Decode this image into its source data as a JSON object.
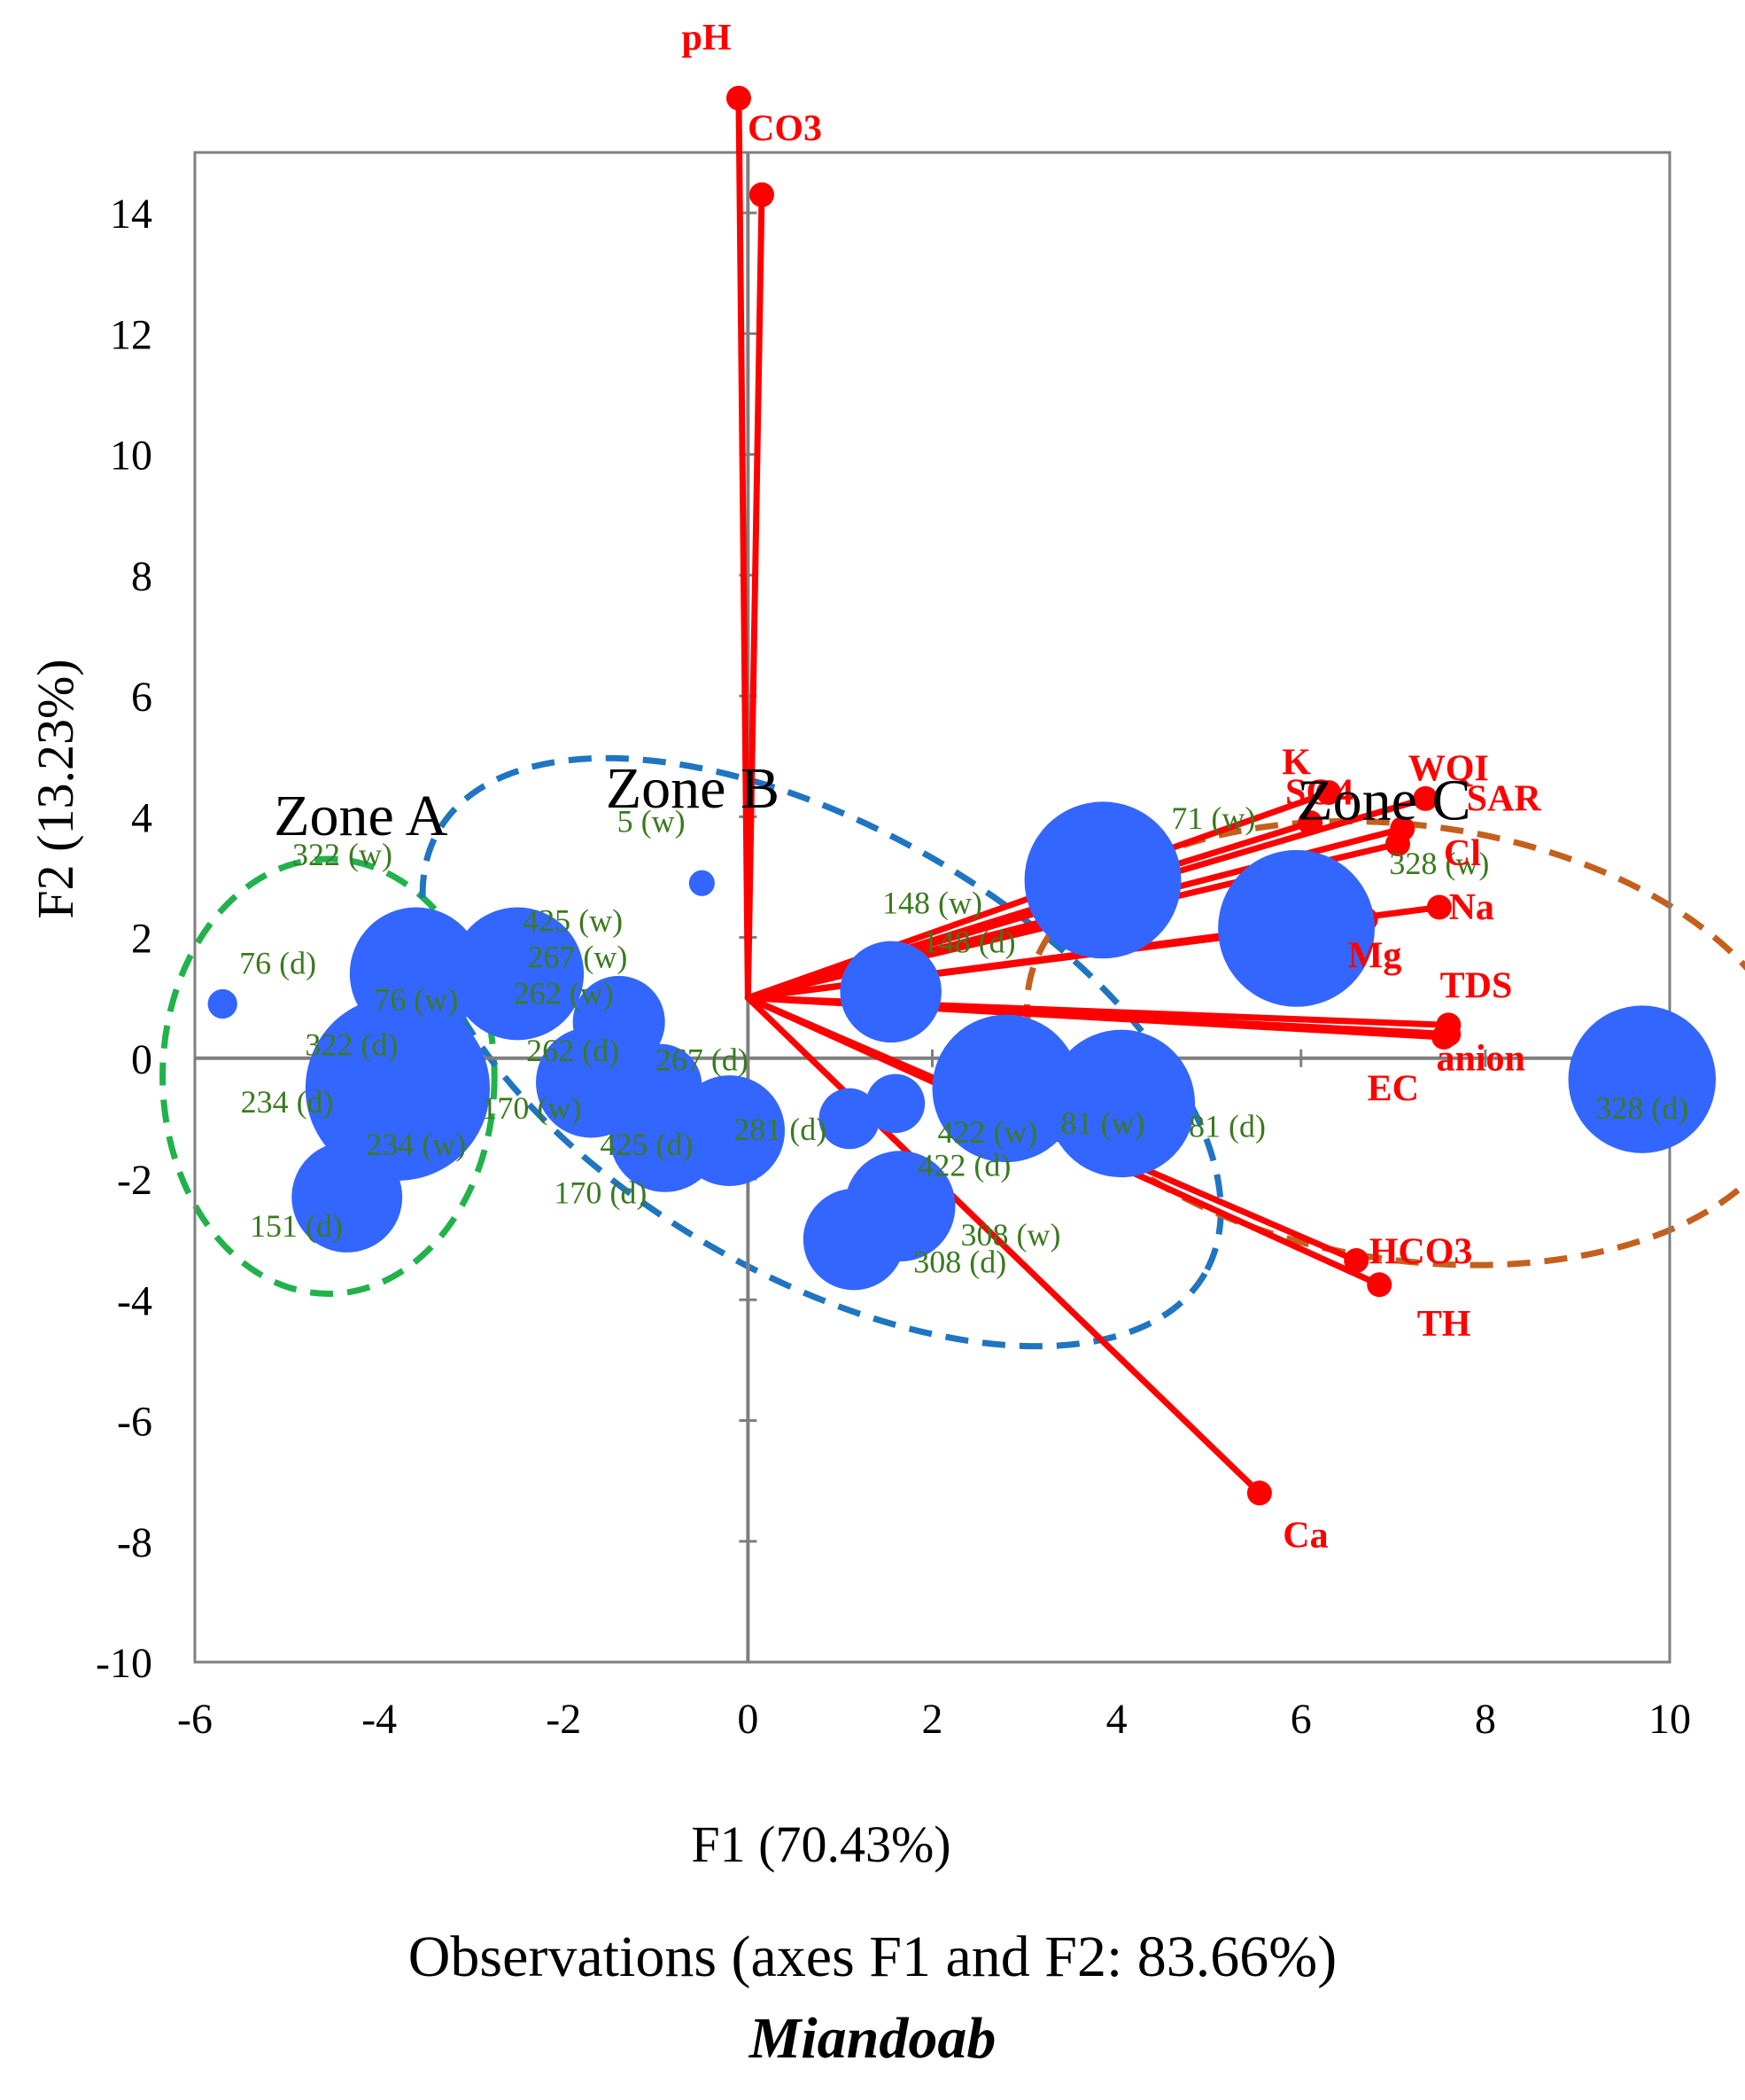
{
  "chart_data": {
    "type": "biplot",
    "title": "Observations (axes F1 and F2: 83.66%)",
    "subtitle": "Miandoab",
    "xlabel": "F1 (70.43%)",
    "ylabel": "F2 (13.23%)",
    "xlim": [
      -6,
      10
    ],
    "ylim": [
      -10,
      15
    ],
    "x_ticks": [
      -6,
      -4,
      -2,
      0,
      2,
      4,
      6,
      8,
      10
    ],
    "y_ticks": [
      -10,
      -8,
      -6,
      -4,
      -2,
      0,
      2,
      4,
      6,
      8,
      10,
      12,
      14
    ],
    "x_tick_labels": [
      "-6",
      "-4",
      "-2",
      "0",
      "2",
      "4",
      "6",
      "8",
      "10"
    ],
    "y_tick_labels": [
      "-10",
      "-8",
      "-6",
      "-4",
      "-2",
      "0",
      "2",
      "4",
      "6",
      "8",
      "10",
      "12",
      "14"
    ],
    "grid": false,
    "vector_origin": [
      0,
      1
    ],
    "variables": [
      {
        "name": "pH",
        "x": -0.1,
        "y": 15.9,
        "lx": -0.45,
        "ly": 16.7
      },
      {
        "name": "CO3",
        "x": 0.15,
        "y": 14.3,
        "lx": 0.4,
        "ly": 15.2
      },
      {
        "name": "K",
        "x": 6.3,
        "y": 4.4,
        "lx": 5.95,
        "ly": 4.7
      },
      {
        "name": "SO4",
        "x": 6.1,
        "y": 3.9,
        "lx": 6.2,
        "ly": 4.2
      },
      {
        "name": "WQI",
        "x": 7.35,
        "y": 4.3,
        "lx": 7.6,
        "ly": 4.6
      },
      {
        "name": "SAR",
        "x": 7.1,
        "y": 3.8,
        "lx": 8.2,
        "ly": 4.1
      },
      {
        "name": "Cl",
        "x": 7.05,
        "y": 3.55,
        "lx": 7.75,
        "ly": 3.2
      },
      {
        "name": "Na",
        "x": 7.5,
        "y": 2.5,
        "lx": 7.85,
        "ly": 2.3
      },
      {
        "name": "Mg",
        "x": 6.7,
        "y": 2.3,
        "lx": 6.8,
        "ly": 1.5
      },
      {
        "name": "TDS",
        "x": 7.6,
        "y": 0.55,
        "lx": 7.9,
        "ly": 1.0
      },
      {
        "name": "anion",
        "x": 7.6,
        "y": 0.4,
        "lx": 7.95,
        "ly": -0.2
      },
      {
        "name": "EC",
        "x": 7.55,
        "y": 0.35,
        "lx": 7.0,
        "ly": -0.7
      },
      {
        "name": "HCO3",
        "x": 6.6,
        "y": -3.35,
        "lx": 7.3,
        "ly": -3.4
      },
      {
        "name": "TH",
        "x": 6.85,
        "y": -3.75,
        "lx": 7.55,
        "ly": -4.6
      },
      {
        "name": "Ca",
        "x": 5.55,
        "y": -7.2,
        "lx": 6.05,
        "ly": -8.1
      }
    ],
    "observations": [
      {
        "label": "76 (d)",
        "x": -5.7,
        "y": 0.9,
        "size": 0.16,
        "lx": -5.1,
        "ly": 1.4
      },
      {
        "label": "322 (w)",
        "x": -4.4,
        "y": 3.2,
        "size": 0,
        "lx": -4.4,
        "ly": 3.2
      },
      {
        "label": "76 (w)",
        "x": -3.6,
        "y": 1.4,
        "size": 0.72,
        "lx": -3.6,
        "ly": 0.8
      },
      {
        "label": "322 (d)",
        "x": -4.3,
        "y": 0.05,
        "size": 0,
        "lx": -4.3,
        "ly": 0.05
      },
      {
        "label": "234 (d)",
        "x": -3.8,
        "y": -0.5,
        "size": 1.0,
        "lx": -5.0,
        "ly": -0.9
      },
      {
        "label": "234 (w)",
        "x": -3.6,
        "y": -1.6,
        "size": 0,
        "lx": -3.6,
        "ly": -1.6
      },
      {
        "label": "151 (d)",
        "x": -4.35,
        "y": -2.3,
        "size": 0.6,
        "lx": -4.9,
        "ly": -2.95
      },
      {
        "label": "425 (w)",
        "x": -1.9,
        "y": 2.1,
        "size": 0,
        "lx": -1.9,
        "ly": 2.1
      },
      {
        "label": "267 (w)",
        "x": -2.5,
        "y": 1.4,
        "size": 0.72,
        "lx": -1.85,
        "ly": 1.5
      },
      {
        "label": "262 (w)",
        "x": -2.0,
        "y": 0.9,
        "size": 0,
        "lx": -2.0,
        "ly": 0.9
      },
      {
        "label": "262 (d)",
        "x": -1.9,
        "y": -0.05,
        "size": 0,
        "lx": -1.9,
        "ly": -0.05
      },
      {
        "label": "",
        "x": -1.4,
        "y": 0.6,
        "size": 0.5,
        "lx": 0,
        "ly": 0
      },
      {
        "label": "",
        "x": -1.7,
        "y": -0.4,
        "size": 0.6,
        "lx": 0,
        "ly": 0
      },
      {
        "label": "",
        "x": -0.95,
        "y": -0.45,
        "size": 0.45,
        "lx": 0,
        "ly": 0
      },
      {
        "label": "170 (w)",
        "x": -2.35,
        "y": -1.0,
        "size": 0,
        "lx": -2.35,
        "ly": -1.0
      },
      {
        "label": "425 (d)",
        "x": -0.9,
        "y": -1.3,
        "size": 0.6,
        "lx": -1.1,
        "ly": -1.6
      },
      {
        "label": "170 (d)",
        "x": -1.6,
        "y": -2.4,
        "size": 0,
        "lx": -1.6,
        "ly": -2.4
      },
      {
        "label": "267 (d)",
        "x": -0.5,
        "y": -0.2,
        "size": 0,
        "lx": -0.5,
        "ly": -0.2
      },
      {
        "label": "281 (d)",
        "x": -0.2,
        "y": -1.2,
        "size": 0.6,
        "lx": 0.35,
        "ly": -1.35
      },
      {
        "label": "5 (w)",
        "x": -0.5,
        "y": 2.9,
        "size": 0.14,
        "lx": -1.05,
        "ly": 3.75
      },
      {
        "label": "148 (w)",
        "x": 2.0,
        "y": 2.4,
        "size": 0,
        "lx": 2.0,
        "ly": 2.4
      },
      {
        "label": "148 (d)",
        "x": 1.55,
        "y": 1.1,
        "size": 0.55,
        "lx": 2.4,
        "ly": 1.75
      },
      {
        "label": "",
        "x": 1.1,
        "y": -1.0,
        "size": 0.33,
        "lx": 0,
        "ly": 0
      },
      {
        "label": "",
        "x": 1.6,
        "y": -0.75,
        "size": 0.32,
        "lx": 0,
        "ly": 0
      },
      {
        "label": "422 (d)",
        "x": 1.65,
        "y": -2.45,
        "size": 0.6,
        "lx": 2.35,
        "ly": -1.95
      },
      {
        "label": "",
        "x": 1.15,
        "y": -3.0,
        "size": 0.55,
        "lx": 0,
        "ly": 0
      },
      {
        "label": "308 (w)",
        "x": 2.85,
        "y": -3.1,
        "size": 0,
        "lx": 2.85,
        "ly": -3.1
      },
      {
        "label": "308 (d)",
        "x": 2.3,
        "y": -3.55,
        "size": 0,
        "lx": 2.3,
        "ly": -3.55
      },
      {
        "label": "422 (w)",
        "x": 2.8,
        "y": -0.5,
        "size": 0.8,
        "lx": 2.6,
        "ly": -1.4
      },
      {
        "label": "81 (w)",
        "x": 4.05,
        "y": -0.75,
        "size": 0.8,
        "lx": 3.85,
        "ly": -1.25
      },
      {
        "label": "81 (d)",
        "x": 5.2,
        "y": -1.3,
        "size": 0,
        "lx": 5.2,
        "ly": -1.3
      },
      {
        "label": "71 (w)",
        "x": 3.85,
        "y": 2.95,
        "size": 0.85,
        "lx": 5.05,
        "ly": 3.8
      },
      {
        "label": "328 (w)",
        "x": 5.95,
        "y": 2.15,
        "size": 0.85,
        "lx": 7.5,
        "ly": 3.05
      },
      {
        "label": "328 (d)",
        "x": 9.7,
        "y": -0.35,
        "size": 0.8,
        "lx": 9.7,
        "ly": -1.0
      }
    ],
    "zones": [
      {
        "name": "Zone A",
        "cx": -4.55,
        "cy": -0.3,
        "rx": 1.8,
        "ry": 3.6,
        "rotate": 0,
        "color": "#21b24b",
        "lx": -4.2,
        "ly": 3.7
      },
      {
        "name": "Zone B",
        "cx": 0.8,
        "cy": 0.1,
        "rx": 4.8,
        "ry": 3.7,
        "rotate": 30,
        "color": "#1f75c0",
        "lx": -0.6,
        "ly": 4.15
      },
      {
        "name": "Zone C",
        "cx": 7.2,
        "cy": 0.25,
        "rx": 4.2,
        "ry": 3.6,
        "rotate": 8,
        "color": "#c4601d",
        "lx": 6.9,
        "ly": 3.95
      }
    ],
    "colors": {
      "observation": "#3366ff",
      "variable": "#ff0000",
      "variable_label": "#ff0000",
      "observation_label": "#3a7a1e",
      "axis": "#7f7f7f",
      "frame": "#7f7f7f"
    }
  }
}
